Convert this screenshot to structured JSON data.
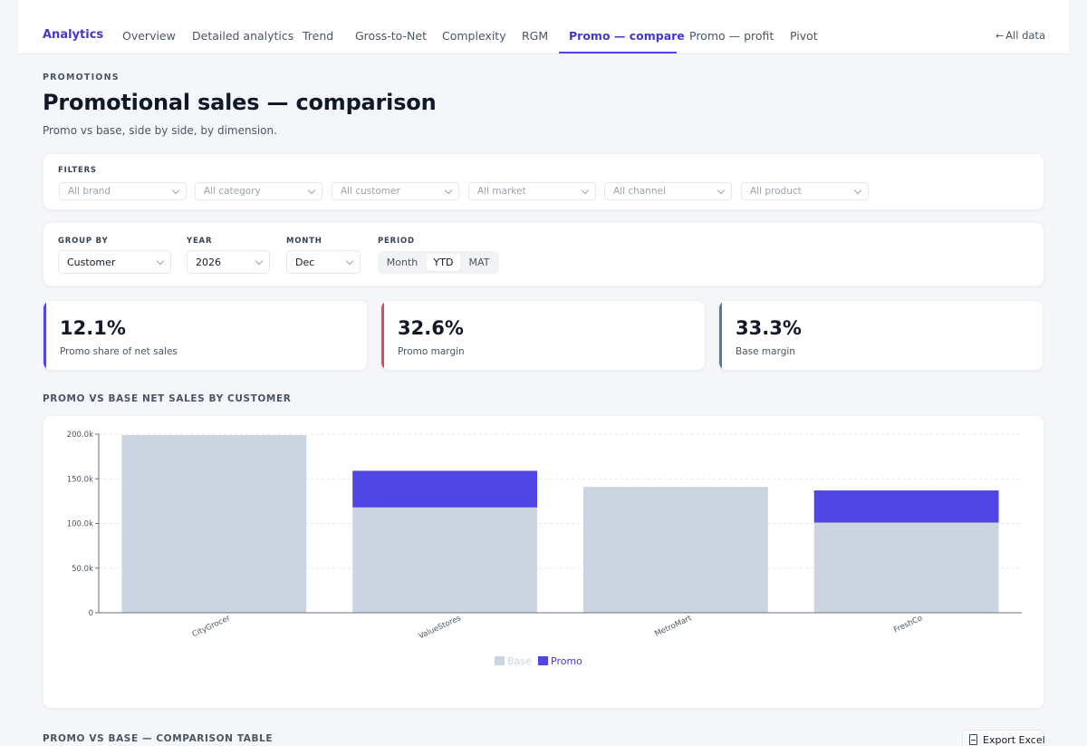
{
  "nav": {
    "brand": "Analytics",
    "tabs": [
      {
        "label": "Overview"
      },
      {
        "label": "Detailed analytics"
      },
      {
        "label": "Trend"
      },
      {
        "label": "Gross-to-Net"
      },
      {
        "label": "Complexity"
      },
      {
        "label": "RGM"
      },
      {
        "label": "Promo — compare",
        "active": true
      },
      {
        "label": "Promo — profit"
      },
      {
        "label": "Pivot"
      }
    ],
    "all_data": "All data"
  },
  "header": {
    "eyebrow": "PROMOTIONS",
    "title": "Promotional sales — comparison",
    "subtitle": "Promo vs base, side by side, by dimension."
  },
  "filters": {
    "label": "FILTERS",
    "selects": [
      {
        "placeholder": "All brand"
      },
      {
        "placeholder": "All category"
      },
      {
        "placeholder": "All customer"
      },
      {
        "placeholder": "All market"
      },
      {
        "placeholder": "All channel"
      },
      {
        "placeholder": "All product"
      }
    ]
  },
  "controls": {
    "group_by": {
      "label": "GROUP BY",
      "value": "Customer"
    },
    "year": {
      "label": "YEAR",
      "value": "2026"
    },
    "month": {
      "label": "MONTH",
      "value": "Dec"
    },
    "period": {
      "label": "PERIOD",
      "options": [
        "Month",
        "YTD",
        "MAT"
      ],
      "selected": "YTD"
    }
  },
  "kpis": [
    {
      "value": "12.1%",
      "label": "Promo share of net sales",
      "accent": "#4f46e5"
    },
    {
      "value": "32.6%",
      "label": "Promo margin",
      "accent": "#e5484d"
    },
    {
      "value": "33.3%",
      "label": "Base margin",
      "accent": "#64748b"
    }
  ],
  "chart_section": {
    "heading": "PROMO VS BASE NET SALES BY CUSTOMER"
  },
  "chart_data": {
    "type": "bar",
    "stacked": true,
    "categories": [
      "CityGrocer",
      "ValueStores",
      "MetroMart",
      "FreshCo"
    ],
    "series": [
      {
        "name": "Base",
        "values": [
          199000,
          118000,
          141000,
          101000
        ],
        "color": "#cbd5e1"
      },
      {
        "name": "Promo",
        "values": [
          0,
          41000,
          0,
          36000
        ],
        "color": "#4f46e5"
      }
    ],
    "ylim": [
      0,
      200000
    ],
    "y_ticks": [
      "0",
      "50.0k",
      "100.0k",
      "150.0k",
      "200.0k"
    ],
    "grid": true,
    "legend": "bottom-center"
  },
  "table_section": {
    "heading": "PROMO VS BASE — COMPARISON TABLE",
    "export_label": "Export Excel"
  }
}
